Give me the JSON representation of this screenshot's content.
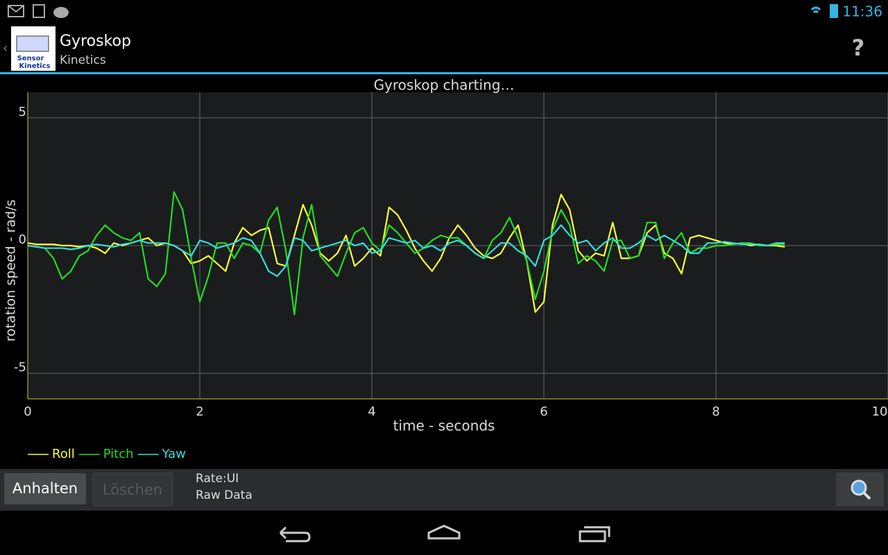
{
  "status_bar": {
    "time": "11:36"
  },
  "action_bar": {
    "icon_text": [
      "Sensor",
      "Kinetics"
    ],
    "title": "Gyroskop",
    "subtitle": "Kinetics",
    "help": "?"
  },
  "chart_data": {
    "type": "line",
    "title": "Gyroskop charting…",
    "x_label": "time - seconds",
    "y_label": "rotation speed - rad/s",
    "xlim": [
      0,
      10
    ],
    "ylim": [
      -6,
      6
    ],
    "xticks": [
      0,
      2,
      4,
      6,
      8,
      10
    ],
    "yticks": [
      -5,
      0,
      5
    ],
    "grid": true,
    "legend": "bottom-left",
    "x": [
      0,
      0.1,
      0.2,
      0.3,
      0.4,
      0.5,
      0.6,
      0.7,
      0.8,
      0.9,
      1,
      1.1,
      1.2,
      1.3,
      1.4,
      1.5,
      1.6,
      1.7,
      1.8,
      1.9,
      2,
      2.1,
      2.2,
      2.3,
      2.4,
      2.5,
      2.6,
      2.7,
      2.8,
      2.9,
      3,
      3.1,
      3.2,
      3.3,
      3.4,
      3.5,
      3.6,
      3.7,
      3.8,
      3.9,
      4,
      4.1,
      4.2,
      4.3,
      4.4,
      4.5,
      4.6,
      4.7,
      4.8,
      4.9,
      5,
      5.1,
      5.2,
      5.3,
      5.4,
      5.5,
      5.6,
      5.7,
      5.8,
      5.9,
      6,
      6.1,
      6.2,
      6.3,
      6.4,
      6.5,
      6.6,
      6.7,
      6.8,
      6.9,
      7,
      7.1,
      7.2,
      7.3,
      7.4,
      7.5,
      7.6,
      7.7,
      7.8,
      7.9,
      8,
      8.1,
      8.2,
      8.3,
      8.4,
      8.5,
      8.6,
      8.7,
      8.8
    ],
    "series": [
      {
        "name": "Roll",
        "color": "#ffff33",
        "values": [
          0.1,
          0.05,
          0.05,
          0.05,
          0,
          0,
          -0.05,
          0,
          -0.1,
          -0.3,
          0.1,
          0,
          0.1,
          0.2,
          0.3,
          0,
          0.1,
          0,
          -0.2,
          -0.7,
          -0.6,
          -0.4,
          -0.7,
          -1.0,
          0.1,
          0.7,
          0.4,
          0.6,
          0.7,
          -0.7,
          -0.8,
          0.4,
          1.6,
          0.8,
          -0.3,
          -0.6,
          -0.3,
          0.4,
          -0.8,
          -0.5,
          -0.1,
          -0.4,
          1.5,
          1.2,
          0.6,
          -0.1,
          -0.6,
          -1.0,
          -0.5,
          0.3,
          0.8,
          0.4,
          -0.1,
          -0.4,
          -0.5,
          -0.3,
          0.3,
          0.8,
          -0.6,
          -2.6,
          -2.2,
          0.8,
          2.0,
          1.4,
          -0.2,
          -0.6,
          -0.3,
          -0.4,
          0.9,
          -0.5,
          -0.5,
          -0.4,
          0.5,
          0.8,
          -0.3,
          -0.5,
          -1.1,
          0.3,
          0.4,
          0.3,
          0.2,
          0.1,
          0.05,
          0.1,
          0,
          0.05,
          0,
          0,
          -0.05
        ]
      },
      {
        "name": "Pitch",
        "color": "#22dd22",
        "values": [
          0,
          -0.05,
          -0.1,
          -0.5,
          -1.3,
          -1.0,
          -0.4,
          -0.2,
          0.4,
          0.8,
          0.5,
          0.3,
          0.2,
          0.5,
          -1.3,
          -1.6,
          -1.1,
          2.1,
          1.4,
          -0.5,
          -2.2,
          -1.2,
          0.1,
          0.1,
          -0.5,
          0.1,
          0,
          -0.3,
          1.0,
          1.5,
          -0.2,
          -2.7,
          0.3,
          1.6,
          -0.4,
          -0.8,
          -1.2,
          -0.3,
          0.5,
          0.7,
          0.1,
          -0.2,
          0.8,
          0.5,
          0.1,
          -0.3,
          -0.1,
          0.2,
          0.4,
          0.3,
          0.3,
          0.0,
          -0.3,
          -0.5,
          0.2,
          0.5,
          1.1,
          0.3,
          -0.6,
          -2.1,
          -1.0,
          0.6,
          1.4,
          0.8,
          -0.7,
          -0.4,
          -0.6,
          -1.0,
          0.2,
          0.2,
          -0.5,
          -0.4,
          0.9,
          0.9,
          -0.5,
          0.1,
          0.5,
          -0.3,
          -0.1,
          -0.1,
          0,
          0,
          0.05,
          0.1,
          0.1,
          0,
          0,
          0.05,
          0.05
        ]
      },
      {
        "name": "Yaw",
        "color": "#33dddd",
        "values": [
          0,
          -0.05,
          -0.1,
          -0.1,
          -0.1,
          -0.15,
          -0.1,
          0,
          0.05,
          0,
          -0.05,
          0.05,
          0.1,
          0.2,
          0.1,
          0.1,
          0.1,
          0,
          -0.2,
          -0.4,
          0.2,
          0.1,
          -0.1,
          0.0,
          0.1,
          0.3,
          0.2,
          -0.3,
          -1.0,
          -1.2,
          -0.8,
          0.3,
          0.2,
          -0.2,
          -0.1,
          0,
          0.1,
          0.2,
          0,
          0.1,
          -0.3,
          -0.2,
          0.3,
          0.2,
          0.1,
          0.2,
          -0.1,
          0,
          -0.2,
          0.1,
          0.2,
          0.0,
          -0.3,
          -0.5,
          -0.2,
          0.1,
          0.1,
          -0.2,
          -0.4,
          -0.8,
          0.2,
          0.4,
          0.8,
          0.4,
          0.1,
          0.2,
          -0.2,
          0.1,
          0.3,
          -0.1,
          -0.1,
          0.1,
          0.4,
          0.2,
          0.4,
          0.2,
          0.0,
          -0.3,
          -0.3,
          0.1,
          0.1,
          0.15,
          0.1,
          0.05,
          0.05,
          0.05,
          0,
          0.1,
          0.1
        ]
      }
    ]
  },
  "toolbar": {
    "buttons": [
      "Anhalten",
      "Löschen"
    ],
    "rate": "Rate:UI",
    "mode": "Raw Data"
  }
}
